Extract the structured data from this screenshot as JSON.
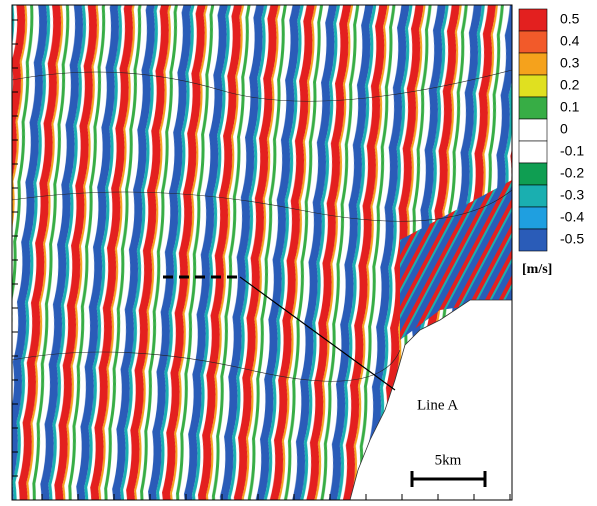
{
  "colorbar": {
    "levels": [
      {
        "label": "0.5",
        "color": "#e3201f"
      },
      {
        "label": "0.4",
        "color": "#f25a2a"
      },
      {
        "label": "0.3",
        "color": "#f5a21c"
      },
      {
        "label": "0.2",
        "color": "#e0e020"
      },
      {
        "label": "0.1",
        "color": "#37ad45"
      },
      {
        "label": "0",
        "color": "#ffffff"
      },
      {
        "label": "-0.1",
        "color": "#ffffff"
      },
      {
        "label": "-0.2",
        "color": "#0f9e52"
      },
      {
        "label": "-0.3",
        "color": "#1aafb0"
      },
      {
        "label": "-0.4",
        "color": "#1f9fe0"
      },
      {
        "label": "-0.5",
        "color": "#2a5cb8"
      }
    ],
    "unit": "[m/s]"
  },
  "annotation": "Line A",
  "scale_bar": "5km"
}
